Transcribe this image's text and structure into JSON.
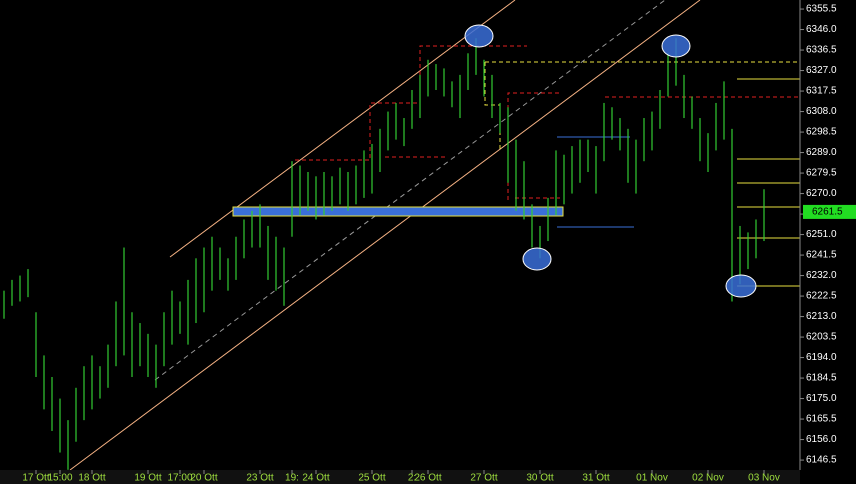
{
  "chart_data": {
    "type": "ohlc",
    "color": "#33cc33",
    "categories": [
      null,
      null,
      null,
      null,
      "17 Ott",
      null,
      null,
      "15:00",
      null,
      null,
      null,
      "18 Ott",
      null,
      null,
      null,
      null,
      null,
      null,
      "19 Ott",
      null,
      null,
      null,
      "17:00",
      null,
      null,
      "20 Ott",
      null,
      null,
      null,
      null,
      null,
      null,
      "23 Ott",
      null,
      null,
      null,
      "19:",
      null,
      null,
      "24 Ott",
      null,
      null,
      null,
      null,
      null,
      null,
      "25 Ott",
      null,
      null,
      null,
      null,
      "2:",
      null,
      "26 Ott",
      null,
      null,
      null,
      null,
      null,
      null,
      "27 Ott",
      null,
      null,
      null,
      null,
      null,
      null,
      "30 Ott",
      null,
      null,
      null,
      null,
      null,
      null,
      "31 Ott",
      null,
      null,
      null,
      null,
      null,
      null,
      "01 Nov",
      null,
      null,
      null,
      null,
      null,
      null,
      "02 Nov",
      null,
      null,
      null,
      null,
      null,
      null,
      "03 Nov"
    ],
    "high": [
      6225,
      6230,
      6232,
      6235,
      6215,
      6195,
      6185,
      6175,
      6165,
      6180,
      6190,
      6195,
      6190,
      6200,
      6220,
      6245,
      6215,
      6210,
      6205,
      6200,
      6215,
      6225,
      6220,
      6230,
      6240,
      6245,
      6250,
      6245,
      6240,
      6250,
      6258,
      6262,
      6265,
      6255,
      6250,
      6245,
      6285,
      6283,
      6280,
      6278,
      6280,
      6278,
      6282,
      6280,
      6283,
      6290,
      6293,
      6300,
      6308,
      6312,
      6305,
      6318,
      6325,
      6332,
      6330,
      6328,
      6322,
      6325,
      6335,
      6342,
      6332,
      6325,
      6312,
      6310,
      6295,
      6285,
      6265,
      6255,
      6268,
      6290,
      6288,
      6292,
      6295,
      6295,
      6292,
      6312,
      6310,
      6305,
      6300,
      6295,
      6305,
      6308,
      6318,
      6335,
      6342,
      6325,
      6315,
      6305,
      6298,
      6312,
      6322,
      6300,
      6255,
      6252,
      6258,
      6272
    ],
    "low": [
      6212,
      6218,
      6220,
      6222,
      6185,
      6170,
      6160,
      6150,
      6142,
      6155,
      6165,
      6170,
      6175,
      6180,
      6190,
      6195,
      6185,
      6190,
      6185,
      6180,
      6190,
      6200,
      6205,
      6200,
      6210,
      6215,
      6225,
      6230,
      6225,
      6230,
      6240,
      6245,
      6245,
      6230,
      6225,
      6218,
      6250,
      6260,
      6262,
      6258,
      6260,
      6262,
      6265,
      6262,
      6265,
      6268,
      6270,
      6280,
      6290,
      6295,
      6292,
      6300,
      6305,
      6315,
      6318,
      6315,
      6310,
      6305,
      6318,
      6325,
      6315,
      6305,
      6298,
      6275,
      6262,
      6258,
      6245,
      6240,
      6248,
      6260,
      6265,
      6270,
      6275,
      6280,
      6270,
      6285,
      6295,
      6290,
      6275,
      6270,
      6285,
      6290,
      6300,
      6315,
      6320,
      6305,
      6300,
      6285,
      6280,
      6290,
      6295,
      6220,
      6228,
      6235,
      6240,
      6248
    ],
    "last_price": 6261.5,
    "ylim": [
      6141.9,
      6359.7
    ],
    "yticks": [
      6355.5,
      {
        "value": 6346,
        "label": "6346.0"
      },
      6336.5,
      {
        "value": 6327,
        "label": "6327.0"
      },
      6317.5,
      {
        "value": 6308,
        "label": "6308.0"
      },
      6298.5,
      {
        "value": 6289,
        "label": "6289.0"
      },
      6279.5,
      {
        "value": 6270,
        "label": "6270.0"
      },
      6260.5,
      {
        "value": 6251,
        "label": "6251.0"
      },
      6241.5,
      {
        "value": 6232,
        "label": "6232.0"
      },
      6222.5,
      {
        "value": 6213,
        "label": "6213.0"
      },
      6203.5,
      {
        "value": 6194,
        "label": "6194.0"
      },
      6184.5,
      {
        "value": 6175,
        "label": "6175.0"
      },
      6165.5,
      {
        "value": 6156,
        "label": "6156.0"
      },
      6146.5
    ]
  }
}
